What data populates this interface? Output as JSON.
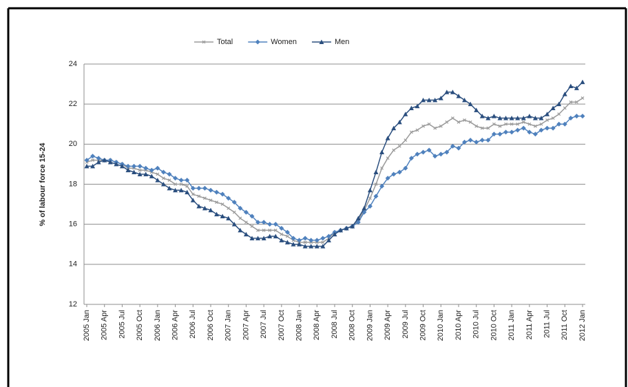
{
  "chart_data": {
    "type": "line",
    "ylabel": "% of labour force 15-24",
    "categories": [
      "2005 Jan",
      null,
      null,
      "2005 Apr",
      null,
      null,
      "2005 Jul",
      null,
      null,
      "2005 Oct",
      null,
      null,
      "2006 Jan",
      null,
      null,
      "2006 Apr",
      null,
      null,
      "2006 Jul",
      null,
      null,
      "2006 Oct",
      null,
      null,
      "2007 Jan",
      null,
      null,
      "2007 Apr",
      null,
      null,
      "2007 Jul",
      null,
      null,
      "2007 Oct",
      null,
      null,
      "2008 Jan",
      null,
      null,
      "2008 Apr",
      null,
      null,
      "2008 Jul",
      null,
      null,
      "2008 Oct",
      null,
      null,
      "2009 Jan",
      null,
      null,
      "2009 Apr",
      null,
      null,
      "2009 Jul",
      null,
      null,
      "2009 Oct",
      null,
      null,
      "2010 Jan",
      null,
      null,
      "2010 Apr",
      null,
      null,
      "2010 Jul",
      null,
      null,
      "2010 Oct",
      null,
      null,
      "2011 Jan",
      null,
      null,
      "2011 Apr",
      null,
      null,
      "2011 Jul",
      null,
      null,
      "2011 Oct",
      null,
      null,
      "2012 Jan"
    ],
    "series": [
      {
        "name": "Total",
        "color": "#9a9a9a",
        "marker": "cross",
        "values": [
          19.1,
          19.2,
          19.2,
          19.2,
          19.2,
          19.1,
          19.0,
          18.8,
          18.8,
          18.7,
          18.7,
          18.6,
          18.5,
          18.3,
          18.2,
          18.0,
          18.0,
          17.9,
          17.5,
          17.4,
          17.3,
          17.2,
          17.1,
          17.0,
          16.8,
          16.6,
          16.3,
          16.1,
          15.9,
          15.7,
          15.7,
          15.7,
          15.7,
          15.5,
          15.4,
          15.2,
          15.1,
          15.1,
          15.1,
          15.1,
          15.1,
          15.3,
          15.6,
          15.7,
          15.8,
          15.9,
          16.2,
          16.7,
          17.3,
          18.0,
          18.8,
          19.3,
          19.7,
          19.9,
          20.2,
          20.6,
          20.7,
          20.9,
          21.0,
          20.8,
          20.9,
          21.1,
          21.3,
          21.1,
          21.2,
          21.1,
          20.9,
          20.8,
          20.8,
          21.0,
          20.9,
          21.0,
          21.0,
          21.0,
          21.1,
          21.0,
          20.9,
          21.0,
          21.2,
          21.3,
          21.5,
          21.8,
          22.1,
          22.1,
          22.3
        ]
      },
      {
        "name": "Women",
        "color": "#4f81bd",
        "marker": "diamond",
        "values": [
          19.2,
          19.4,
          19.3,
          19.2,
          19.2,
          19.1,
          19.0,
          18.9,
          18.9,
          18.9,
          18.8,
          18.7,
          18.8,
          18.6,
          18.5,
          18.3,
          18.2,
          18.2,
          17.8,
          17.8,
          17.8,
          17.7,
          17.6,
          17.5,
          17.3,
          17.1,
          16.8,
          16.6,
          16.4,
          16.1,
          16.1,
          16.0,
          16.0,
          15.8,
          15.6,
          15.3,
          15.2,
          15.3,
          15.2,
          15.2,
          15.3,
          15.4,
          15.6,
          15.7,
          15.8,
          15.9,
          16.1,
          16.6,
          16.9,
          17.4,
          17.9,
          18.3,
          18.5,
          18.6,
          18.8,
          19.3,
          19.5,
          19.6,
          19.7,
          19.4,
          19.5,
          19.6,
          19.9,
          19.8,
          20.1,
          20.2,
          20.1,
          20.2,
          20.2,
          20.5,
          20.5,
          20.6,
          20.6,
          20.7,
          20.8,
          20.6,
          20.5,
          20.7,
          20.8,
          20.8,
          21.0,
          21.0,
          21.3,
          21.4,
          21.4
        ]
      },
      {
        "name": "Men",
        "color": "#2a4e7e",
        "marker": "triangle",
        "values": [
          18.9,
          18.9,
          19.1,
          19.2,
          19.1,
          19.0,
          18.9,
          18.7,
          18.6,
          18.5,
          18.5,
          18.4,
          18.2,
          18.0,
          17.8,
          17.7,
          17.7,
          17.6,
          17.2,
          16.9,
          16.8,
          16.7,
          16.5,
          16.4,
          16.3,
          16.0,
          15.7,
          15.5,
          15.3,
          15.3,
          15.3,
          15.4,
          15.4,
          15.2,
          15.1,
          15.0,
          15.0,
          14.9,
          14.9,
          14.9,
          14.9,
          15.2,
          15.5,
          15.7,
          15.8,
          15.9,
          16.3,
          16.8,
          17.7,
          18.6,
          19.6,
          20.3,
          20.8,
          21.1,
          21.5,
          21.8,
          21.9,
          22.2,
          22.2,
          22.2,
          22.3,
          22.6,
          22.6,
          22.4,
          22.2,
          22.0,
          21.7,
          21.4,
          21.3,
          21.4,
          21.3,
          21.3,
          21.3,
          21.3,
          21.3,
          21.4,
          21.3,
          21.3,
          21.5,
          21.8,
          22.0,
          22.5,
          22.9,
          22.8,
          23.1
        ]
      }
    ],
    "ylim": [
      12,
      24
    ],
    "yticks": [
      12,
      14,
      16,
      18,
      20,
      22,
      24
    ],
    "grid": true,
    "legend": "top"
  }
}
